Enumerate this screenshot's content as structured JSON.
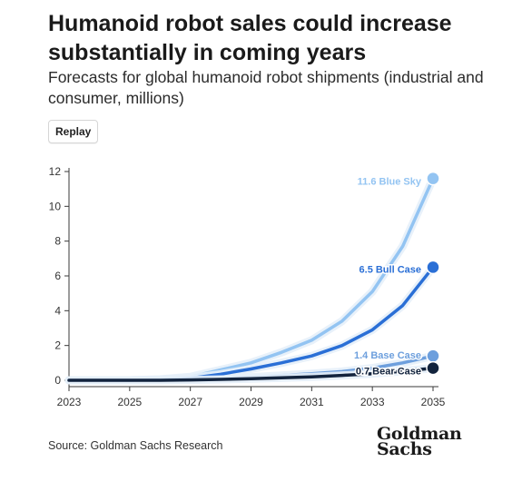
{
  "header": {
    "title": "Humanoid robot sales could increase substantially in coming years",
    "subtitle": "Forecasts for global humanoid robot shipments (industrial and consumer, millions)"
  },
  "controls": {
    "replay_label": "Replay"
  },
  "footer": {
    "source": "Source: Goldman Sachs Research",
    "logo_line1": "Goldman",
    "logo_line2": "Sachs"
  },
  "chart_data": {
    "type": "line",
    "title": "",
    "xlabel": "",
    "ylabel": "",
    "x": [
      2023,
      2024,
      2025,
      2026,
      2027,
      2028,
      2029,
      2030,
      2031,
      2032,
      2033,
      2034,
      2035
    ],
    "xticks": [
      "2023",
      "2025",
      "2027",
      "2029",
      "2031",
      "2033",
      "2035"
    ],
    "yticks": [
      "0",
      "2",
      "4",
      "6",
      "8",
      "10",
      "12"
    ],
    "xlim": [
      2023,
      2035
    ],
    "ylim": [
      0,
      12
    ],
    "grid": false,
    "series": [
      {
        "name": "Blue Sky",
        "label": "11.6 Blue Sky",
        "color": "#93c4f2",
        "end_value": 11.6,
        "values": [
          0,
          0,
          0,
          0.05,
          0.2,
          0.6,
          1.0,
          1.6,
          2.3,
          3.4,
          5.1,
          7.7,
          11.6
        ]
      },
      {
        "name": "Bull Case",
        "label": "6.5 Bull Case",
        "color": "#2a6fd6",
        "end_value": 6.5,
        "values": [
          0,
          0,
          0,
          0.03,
          0.12,
          0.35,
          0.65,
          1.0,
          1.4,
          2.0,
          2.9,
          4.3,
          6.5
        ]
      },
      {
        "name": "Base Case",
        "label": "1.4 Base Case",
        "color": "#6d9fdd",
        "end_value": 1.4,
        "values": [
          0,
          0,
          0,
          0.02,
          0.05,
          0.1,
          0.18,
          0.27,
          0.38,
          0.5,
          0.7,
          1.0,
          1.4
        ]
      },
      {
        "name": "Bear Case",
        "label": "0.7 Bear Case",
        "color": "#12233d",
        "end_value": 0.7,
        "values": [
          0,
          0,
          0,
          0,
          0.02,
          0.05,
          0.09,
          0.14,
          0.2,
          0.28,
          0.38,
          0.52,
          0.7
        ]
      }
    ]
  }
}
